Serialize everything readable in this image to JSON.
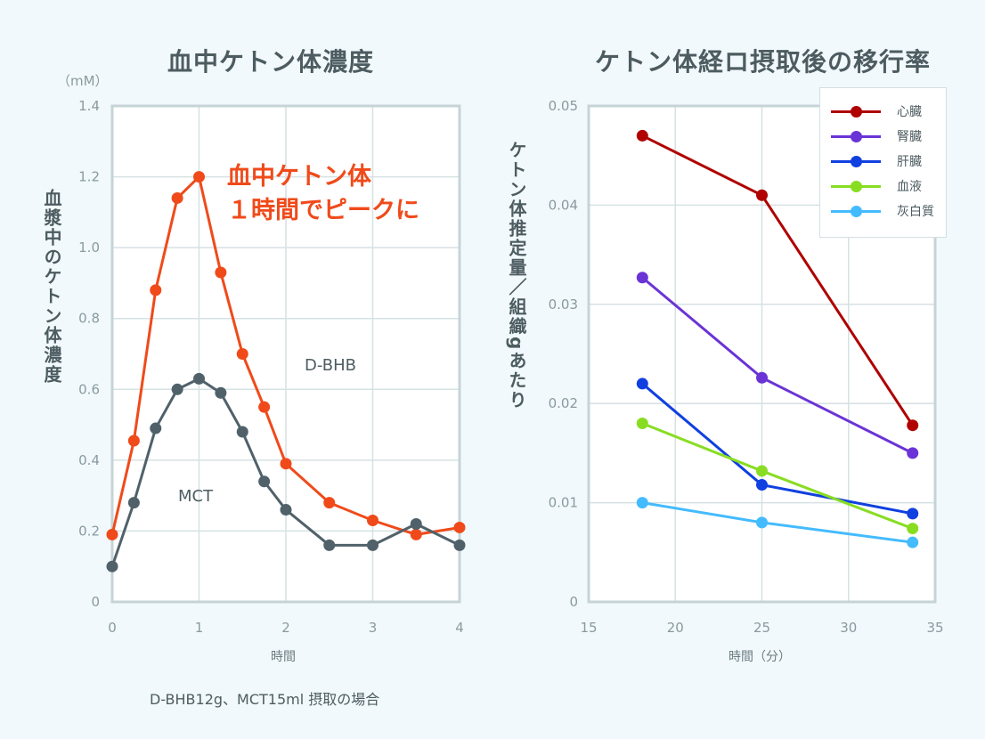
{
  "chart_data": [
    {
      "type": "line",
      "title": "血中ケトン体濃度",
      "unit": "（mM）",
      "ylabel": "血漿中のケトン体濃度",
      "xlabel": "時間",
      "note": "D-BHB12g、MCT15ml 摂取の場合",
      "annotation": [
        "血中ケトン体",
        "１時間でピークに"
      ],
      "xlim": [
        0,
        4
      ],
      "ylim": [
        0,
        1.4
      ],
      "xticks": [
        "0",
        "1",
        "2",
        "3",
        "4"
      ],
      "yticks": [
        "0",
        "0.2",
        "0.4",
        "0.6",
        "0.8",
        "1.0",
        "1.2",
        "1.4"
      ],
      "grid": true,
      "x": [
        0,
        0.25,
        0.5,
        0.75,
        1,
        1.25,
        1.5,
        1.75,
        2,
        2.5,
        3,
        3.5,
        4
      ],
      "series": [
        {
          "name": "D-BHB",
          "color": "#f04a1a",
          "values": [
            0.19,
            0.455,
            0.88,
            1.14,
            1.2,
            0.93,
            0.7,
            0.55,
            0.39,
            0.28,
            0.23,
            0.19,
            0.21
          ]
        },
        {
          "name": "MCT",
          "color": "#50616a",
          "values": [
            0.1,
            0.28,
            0.49,
            0.6,
            0.63,
            0.59,
            0.48,
            0.34,
            0.26,
            0.16,
            0.16,
            0.22,
            0.16
          ]
        }
      ]
    },
    {
      "type": "line",
      "title": "ケトン体経ロ摂取後の移行率",
      "ylabel": "ケトン体推定量／組織gあたり",
      "xlabel": "時間（分）",
      "xlim": [
        15,
        35
      ],
      "ylim": [
        0,
        0.05
      ],
      "xticks": [
        "15",
        "20",
        "25",
        "30",
        "35"
      ],
      "yticks": [
        "0",
        "0.01",
        "0.02",
        "0.03",
        "0.04",
        "0.05"
      ],
      "grid": true,
      "legend": "top-right",
      "x": [
        18.1,
        25,
        33.7
      ],
      "series": [
        {
          "name": "心臓",
          "color": "#b00000",
          "values": [
            0.047,
            0.041,
            0.0178
          ]
        },
        {
          "name": "腎臓",
          "color": "#6a33d6",
          "values": [
            0.0327,
            0.0226,
            0.015
          ]
        },
        {
          "name": "肝臓",
          "color": "#1040e0",
          "values": [
            0.022,
            0.0118,
            0.0089
          ]
        },
        {
          "name": "血液",
          "color": "#88dd22",
          "values": [
            0.018,
            0.0132,
            0.0074
          ]
        },
        {
          "name": "灰白質",
          "color": "#44bbff",
          "values": [
            0.01,
            0.008,
            0.006
          ]
        }
      ]
    }
  ]
}
